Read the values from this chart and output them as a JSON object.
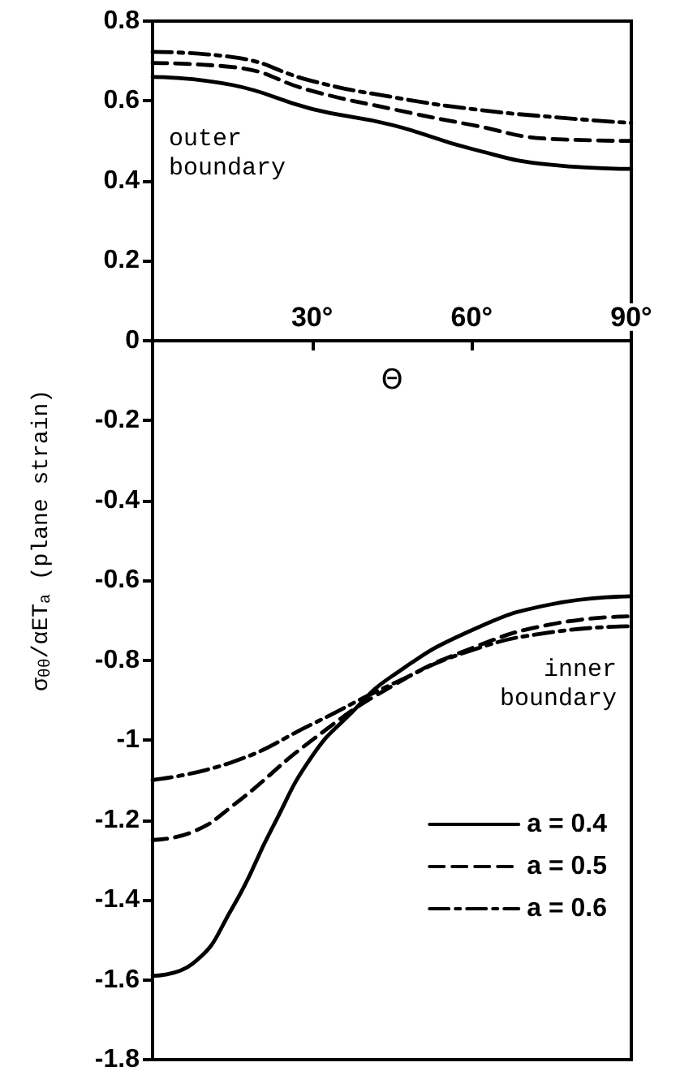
{
  "chart_data": {
    "type": "line",
    "xlabel": "Θ",
    "ylabel": "σ$_{θθ}$/αET$_{a}$ (plane strain)",
    "xlim": [
      0,
      90
    ],
    "xticks": [
      {
        "value": 30,
        "label": "30°"
      },
      {
        "value": 60,
        "label": "60°"
      },
      {
        "value": 90,
        "label": "90°"
      }
    ],
    "ylim": [
      -1.8,
      0.8
    ],
    "yticks": [
      -1.8,
      -1.6,
      -1.4,
      -1.2,
      -1.0,
      -0.8,
      -0.6,
      -0.4,
      -0.2,
      0,
      0.2,
      0.4,
      0.6,
      0.8
    ],
    "grid": false,
    "legend": "bottom right",
    "marker": "none",
    "annotations": [
      "outer boundary",
      "inner boundary"
    ],
    "series": [
      {
        "name": "a = 0.4",
        "color": "#000000",
        "line_style": "solid",
        "x": [
          0,
          7.5,
          15,
          22.5,
          30,
          37.5,
          45,
          60,
          75,
          90
        ],
        "values": [
          -1.59,
          -1.56,
          -1.42,
          -1.22,
          -1.04,
          -0.93,
          -0.84,
          -0.725,
          -0.66,
          -0.64
        ]
      },
      {
        "name": "a = 0.5",
        "color": "#000000",
        "line_style": "dashed",
        "x": [
          0,
          7.5,
          15,
          30,
          45,
          60,
          75,
          90
        ],
        "values": [
          -1.25,
          -1.23,
          -1.165,
          -1.0,
          -0.865,
          -0.77,
          -0.71,
          -0.69
        ]
      },
      {
        "name": "a = 0.6",
        "color": "#000000",
        "line_style": "dashdot",
        "x": [
          0,
          15,
          30,
          45,
          60,
          75,
          90
        ],
        "values": [
          -1.1,
          -1.055,
          -0.96,
          -0.86,
          -0.775,
          -0.73,
          -0.715
        ]
      },
      {
        "color": "#000000",
        "line_style": "solid",
        "x": [
          0,
          15,
          30,
          45,
          60,
          75,
          90
        ],
        "values": [
          0.66,
          0.64,
          0.58,
          0.54,
          0.48,
          0.44,
          0.43
        ]
      },
      {
        "color": "#000000",
        "line_style": "dashed",
        "x": [
          0,
          15,
          30,
          45,
          60,
          75,
          90
        ],
        "values": [
          0.695,
          0.685,
          0.625,
          0.58,
          0.54,
          0.505,
          0.5
        ]
      },
      {
        "color": "#000000",
        "line_style": "dashdot",
        "x": [
          0,
          15,
          30,
          45,
          60,
          75,
          90
        ],
        "values": [
          0.723,
          0.71,
          0.65,
          0.61,
          0.58,
          0.56,
          0.545
        ]
      }
    ]
  }
}
